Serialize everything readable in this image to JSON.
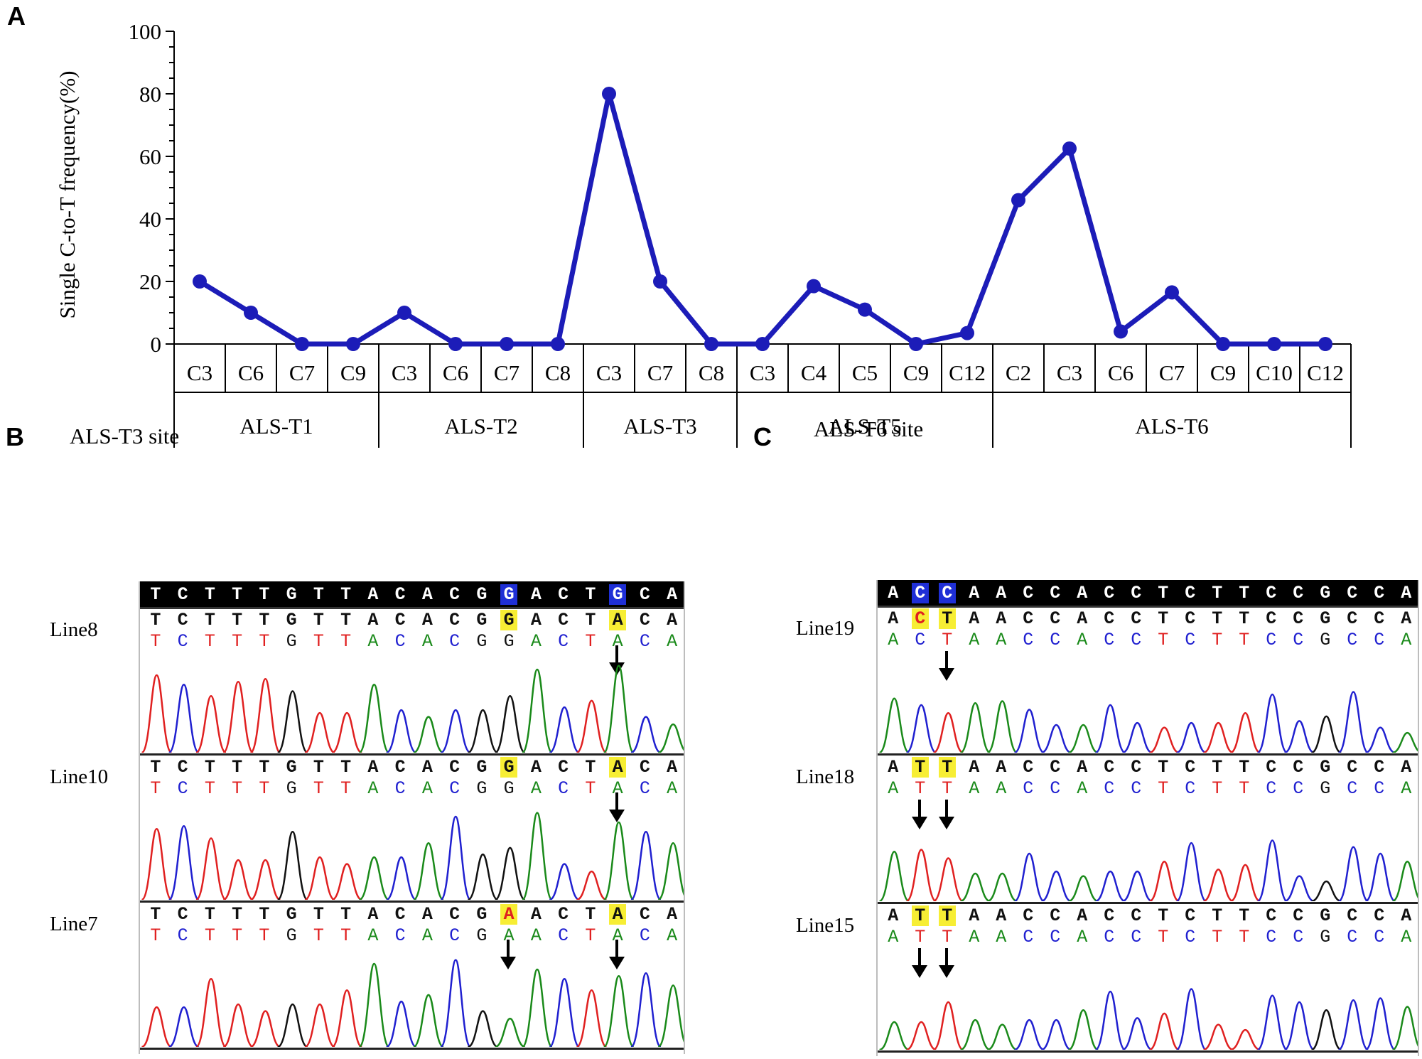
{
  "panels": {
    "a_letter": "A",
    "b_letter": "B",
    "c_letter": "C"
  },
  "chart_data": {
    "type": "line",
    "ylabel": "Single C-to-T frequency(%)",
    "ylim": [
      0,
      100
    ],
    "yticks": [
      "0",
      "20",
      "40",
      "60",
      "80",
      "100"
    ],
    "series_color": "#1c1cb8",
    "x": [
      "C3",
      "C6",
      "C7",
      "C9",
      "C3",
      "C6",
      "C7",
      "C8",
      "C3",
      "C7",
      "C8",
      "C3",
      "C4",
      "C5",
      "C9",
      "C12",
      "C2",
      "C3",
      "C6",
      "C7",
      "C9",
      "C10",
      "C12"
    ],
    "values": [
      20,
      10,
      0,
      0,
      10,
      0,
      0,
      0,
      80,
      20,
      0,
      0,
      18.5,
      11,
      0,
      3.5,
      46,
      62.5,
      4,
      16.5,
      0,
      0,
      0
    ],
    "groups": [
      {
        "name": "ALS-T1",
        "count": 4
      },
      {
        "name": "ALS-T2",
        "count": 4
      },
      {
        "name": "ALS-T3",
        "count": 3
      },
      {
        "name": "ALS-T5",
        "count": 5
      },
      {
        "name": "ALS-T6",
        "count": 7
      }
    ]
  },
  "panel_b": {
    "title": "ALS-T3 site",
    "reference": "TCTTTGTTACACGGACTGCA",
    "reference_highlight": [
      13,
      17
    ],
    "lines": [
      {
        "label": "Line8",
        "called": "TCTTTGTTACACGGACTACA",
        "base_seq": "TCTTTGTTACACGGACTACA",
        "highlight": [
          13,
          17
        ],
        "red": [],
        "arrows": [
          17
        ]
      },
      {
        "label": "Line10",
        "called": "TCTTTGTTACACGGACTACA",
        "base_seq": "TCTTTGTTACACGGACTACA",
        "highlight": [
          13,
          17
        ],
        "red": [],
        "arrows": [
          17
        ]
      },
      {
        "label": "Line7",
        "called": "TCTTTGTTACACGAACTACA",
        "base_seq": "TCTTTGTTACACGAACTACA",
        "highlight": [
          13,
          17
        ],
        "red": [
          13
        ],
        "arrows": [
          13,
          17
        ]
      }
    ]
  },
  "panel_c": {
    "title": "ALS-T6 site",
    "reference": "ACCAACCACCTCTTCCGCCA",
    "reference_highlight": [
      1,
      2
    ],
    "lines": [
      {
        "label": "Line19",
        "called": "ACTAACCACCTCTTCCGCCA",
        "base_seq": "ACTAACCACCTCTTCCGCCA",
        "highlight": [
          1,
          2
        ],
        "red": [
          1
        ],
        "arrows": [
          2
        ]
      },
      {
        "label": "Line18",
        "called": "ATTAACCACCTCTTCCGCCA",
        "base_seq": "ATTAACCACCTCTTCCGCCA",
        "highlight": [
          1,
          2
        ],
        "red": [],
        "arrows": [
          1,
          2
        ]
      },
      {
        "label": "Line15",
        "called": "ATTAACCACCTCTTCCGCCA",
        "base_seq": "ATTAACCACCTCTTCCGCCA",
        "highlight": [
          1,
          2
        ],
        "red": [],
        "arrows": [
          1,
          2
        ]
      }
    ]
  },
  "base_colors": {
    "A": "#1a8a1a",
    "C": "#2020d0",
    "G": "#111111",
    "T": "#e02020"
  }
}
